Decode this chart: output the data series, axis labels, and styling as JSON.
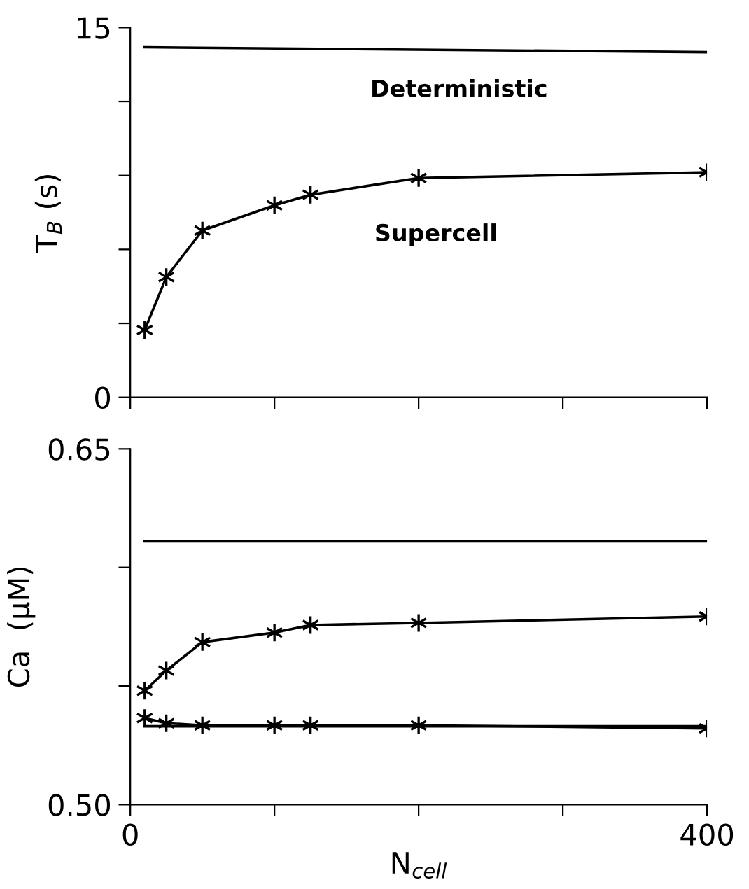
{
  "chart_data": [
    {
      "type": "line",
      "ylabel": "T$_{B}$ (s)",
      "xlim": [
        0,
        400
      ],
      "xticks": [
        {
          "value": 0,
          "label": null
        },
        {
          "value": 100,
          "label": null
        },
        {
          "value": 200,
          "label": null
        },
        {
          "value": 300,
          "label": null
        },
        {
          "value": 400,
          "label": null
        }
      ],
      "ylim": [
        0,
        15
      ],
      "yticks": [
        0,
        {
          "value": 3,
          "label": null
        },
        {
          "value": 6,
          "label": null
        },
        {
          "value": 9,
          "label": null
        },
        {
          "value": 12,
          "label": null
        },
        15
      ],
      "tick_labels": "y",
      "grid": false,
      "legend": false,
      "series": [
        {
          "color": "#000000",
          "x": [
            10,
            400
          ],
          "values": [
            14.2,
            14.0
          ],
          "marker": "none"
        },
        {
          "color": "#000000",
          "x": [
            10,
            25,
            50,
            100,
            125,
            200,
            400
          ],
          "values": [
            2.73,
            4.88,
            6.77,
            7.79,
            8.22,
            8.9,
            9.13
          ],
          "marker": "cross"
        }
      ],
      "annotations": [
        "Deterministic",
        "Supercell"
      ]
    },
    {
      "type": "line",
      "xlabel": "N$_{cell}$",
      "ylabel": "Ca  (μM)",
      "xlim": [
        0,
        400
      ],
      "xticks": [
        0,
        {
          "value": 100,
          "label": null
        },
        {
          "value": 200,
          "label": null
        },
        {
          "value": 300,
          "label": null
        },
        400
      ],
      "ylim": [
        0.5,
        0.65
      ],
      "yticks": [
        {
          "value": 0.5,
          "label": "0.50"
        },
        {
          "value": 0.55,
          "label": null
        },
        {
          "value": 0.6,
          "label": null
        },
        0.65
      ],
      "grid": false,
      "legend": false,
      "series": [
        {
          "color": "#000000",
          "x": [
            10,
            400
          ],
          "values": [
            0.611,
            0.611
          ],
          "marker": "none"
        },
        {
          "color": "#000000",
          "x": [
            10,
            25,
            50,
            100,
            125,
            200,
            400
          ],
          "values": [
            0.548,
            0.5565,
            0.5685,
            0.5725,
            0.5757,
            0.5766,
            0.5793
          ],
          "marker": "cross"
        },
        {
          "color": "#000000",
          "x": [
            10,
            25,
            50,
            100,
            125,
            200,
            400
          ],
          "values": [
            0.5365,
            0.5343,
            0.5334,
            0.5334,
            0.5334,
            0.5334,
            0.5321
          ],
          "marker": "cross"
        },
        {
          "color": "#000000",
          "x": [
            10,
            400
          ],
          "values": [
            0.533,
            0.533
          ],
          "marker": "none"
        }
      ]
    }
  ]
}
